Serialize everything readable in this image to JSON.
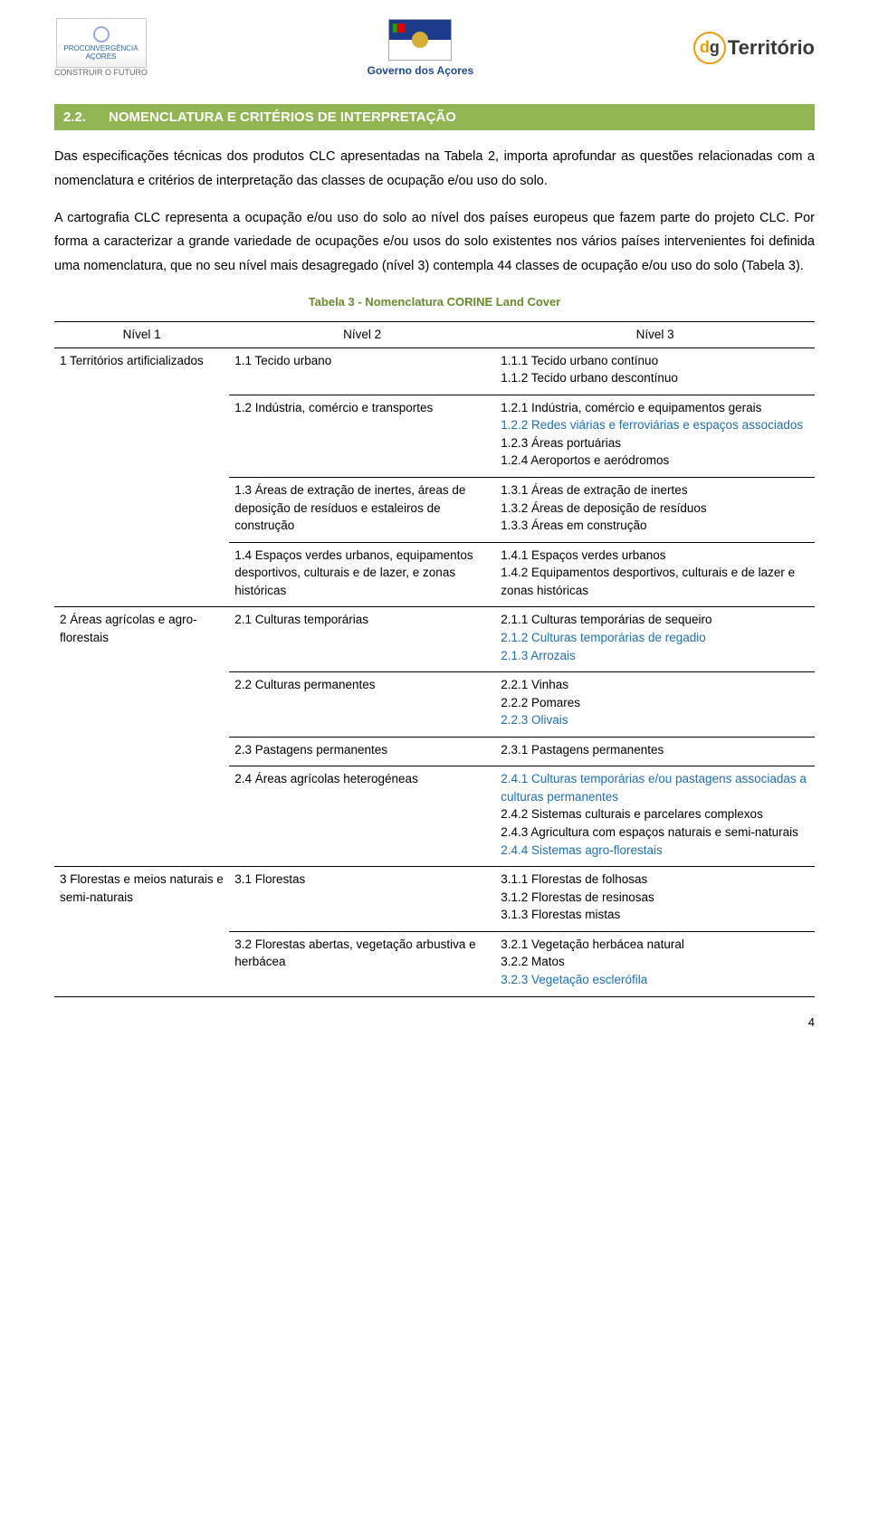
{
  "header": {
    "logo_left_line1": "PROCONVERGÊNCIA",
    "logo_left_line2": "AÇORES",
    "logo_left_line3": "CONSTRUIR O FUTURO",
    "gov_text": "Governo dos Açores",
    "logo_right_prefix_d": "d",
    "logo_right_prefix_g": "g",
    "logo_right_text": "Território"
  },
  "section": {
    "number": "2.2.",
    "title": "NOMENCLATURA E CRITÉRIOS DE INTERPRETAÇÃO"
  },
  "paragraphs": {
    "p1": "Das especificações técnicas dos produtos CLC apresentadas na Tabela 2, importa aprofundar as questões relacionadas com a nomenclatura e critérios de interpretação das classes de ocupação e/ou uso do solo.",
    "p2": "A cartografia CLC representa a ocupação e/ou uso do solo ao nível dos países europeus que fazem parte do projeto CLC. Por forma a caracterizar a grande variedade de ocupações e/ou usos do solo existentes nos vários países intervenientes foi definida uma nomenclatura, que no seu nível mais desagregado (nível 3) contempla 44 classes de ocupação e/ou uso do solo (Tabela 3)."
  },
  "table_caption": "Tabela 3 - Nomenclatura CORINE Land Cover",
  "headers": {
    "h1": "Nível 1",
    "h2": "Nível 2",
    "h3": "Nível 3"
  },
  "colors": {
    "section_bg": "#92b553",
    "caption": "#6a8a2f",
    "na_color": "#1f6fb2"
  },
  "rows": [
    {
      "l1": "1 Territórios artificializados",
      "groups": [
        {
          "l2": "1.1 Tecido urbano",
          "l3": [
            {
              "t": "1.1.1 Tecido urbano contínuo",
              "na": false
            },
            {
              "t": "1.1.2 Tecido urbano descontínuo",
              "na": false
            }
          ]
        },
        {
          "l2": "1.2 Indústria, comércio e transportes",
          "l3": [
            {
              "t": "1.2.1 Indústria, comércio e equipamentos gerais",
              "na": false
            },
            {
              "t": "1.2.2 Redes viárias e ferroviárias e espaços associados",
              "na": true
            },
            {
              "t": "1.2.3 Áreas portuárias",
              "na": false
            },
            {
              "t": "1.2.4 Aeroportos e aeródromos",
              "na": false
            }
          ]
        },
        {
          "l2": "1.3 Áreas de extração de inertes, áreas de deposição de resíduos e estaleiros de construção",
          "l3": [
            {
              "t": "1.3.1 Áreas de extração de inertes",
              "na": false
            },
            {
              "t": "1.3.2 Áreas de deposição de resíduos",
              "na": false
            },
            {
              "t": "1.3.3 Áreas em construção",
              "na": false
            }
          ]
        },
        {
          "l2": "1.4 Espaços verdes urbanos, equipamentos desportivos, culturais\ne de lazer, e zonas históricas",
          "l3": [
            {
              "t": "1.4.1 Espaços verdes urbanos",
              "na": false
            },
            {
              "t": "1.4.2 Equipamentos desportivos, culturais e de lazer e zonas históricas",
              "na": false
            }
          ]
        }
      ]
    },
    {
      "l1": "2 Áreas agrícolas e agro-florestais",
      "groups": [
        {
          "l2": "2.1 Culturas temporárias",
          "l3": [
            {
              "t": "2.1.1 Culturas temporárias de sequeiro",
              "na": false
            },
            {
              "t": "2.1.2 Culturas temporárias de regadio",
              "na": true
            },
            {
              "t": "2.1.3 Arrozais",
              "na": true
            }
          ]
        },
        {
          "l2": "2.2 Culturas permanentes",
          "l3": [
            {
              "t": "2.2.1 Vinhas",
              "na": false
            },
            {
              "t": "2.2.2 Pomares",
              "na": false
            },
            {
              "t": "2.2.3 Olivais",
              "na": true
            }
          ]
        },
        {
          "l2": "2.3 Pastagens permanentes",
          "l3": [
            {
              "t": "2.3.1 Pastagens permanentes",
              "na": false
            }
          ]
        },
        {
          "l2": "2.4 Áreas agrícolas heterogéneas",
          "l3": [
            {
              "t": "2.4.1 Culturas temporárias e/ou pastagens associadas a culturas permanentes",
              "na": true
            },
            {
              "t": "2.4.2 Sistemas culturais e parcelares complexos",
              "na": false
            },
            {
              "t": "2.4.3 Agricultura com espaços naturais e semi-naturais",
              "na": false
            },
            {
              "t": "2.4.4 Sistemas agro-florestais",
              "na": true
            }
          ]
        }
      ]
    },
    {
      "l1": "3 Florestas e meios naturais e semi-naturais",
      "groups": [
        {
          "l2": "3.1 Florestas",
          "l3": [
            {
              "t": "3.1.1 Florestas de folhosas",
              "na": false
            },
            {
              "t": "3.1.2 Florestas de resinosas",
              "na": false
            },
            {
              "t": "3.1.3 Florestas mistas",
              "na": false
            }
          ]
        },
        {
          "l2": "3.2 Florestas abertas, vegetação arbustiva e herbácea",
          "l3": [
            {
              "t": "3.2.1 Vegetação herbácea natural",
              "na": false
            },
            {
              "t": "3.2.2 Matos",
              "na": false
            },
            {
              "t": "3.2.3 Vegetação esclerófila",
              "na": true
            }
          ]
        }
      ]
    }
  ],
  "page_number": "4"
}
